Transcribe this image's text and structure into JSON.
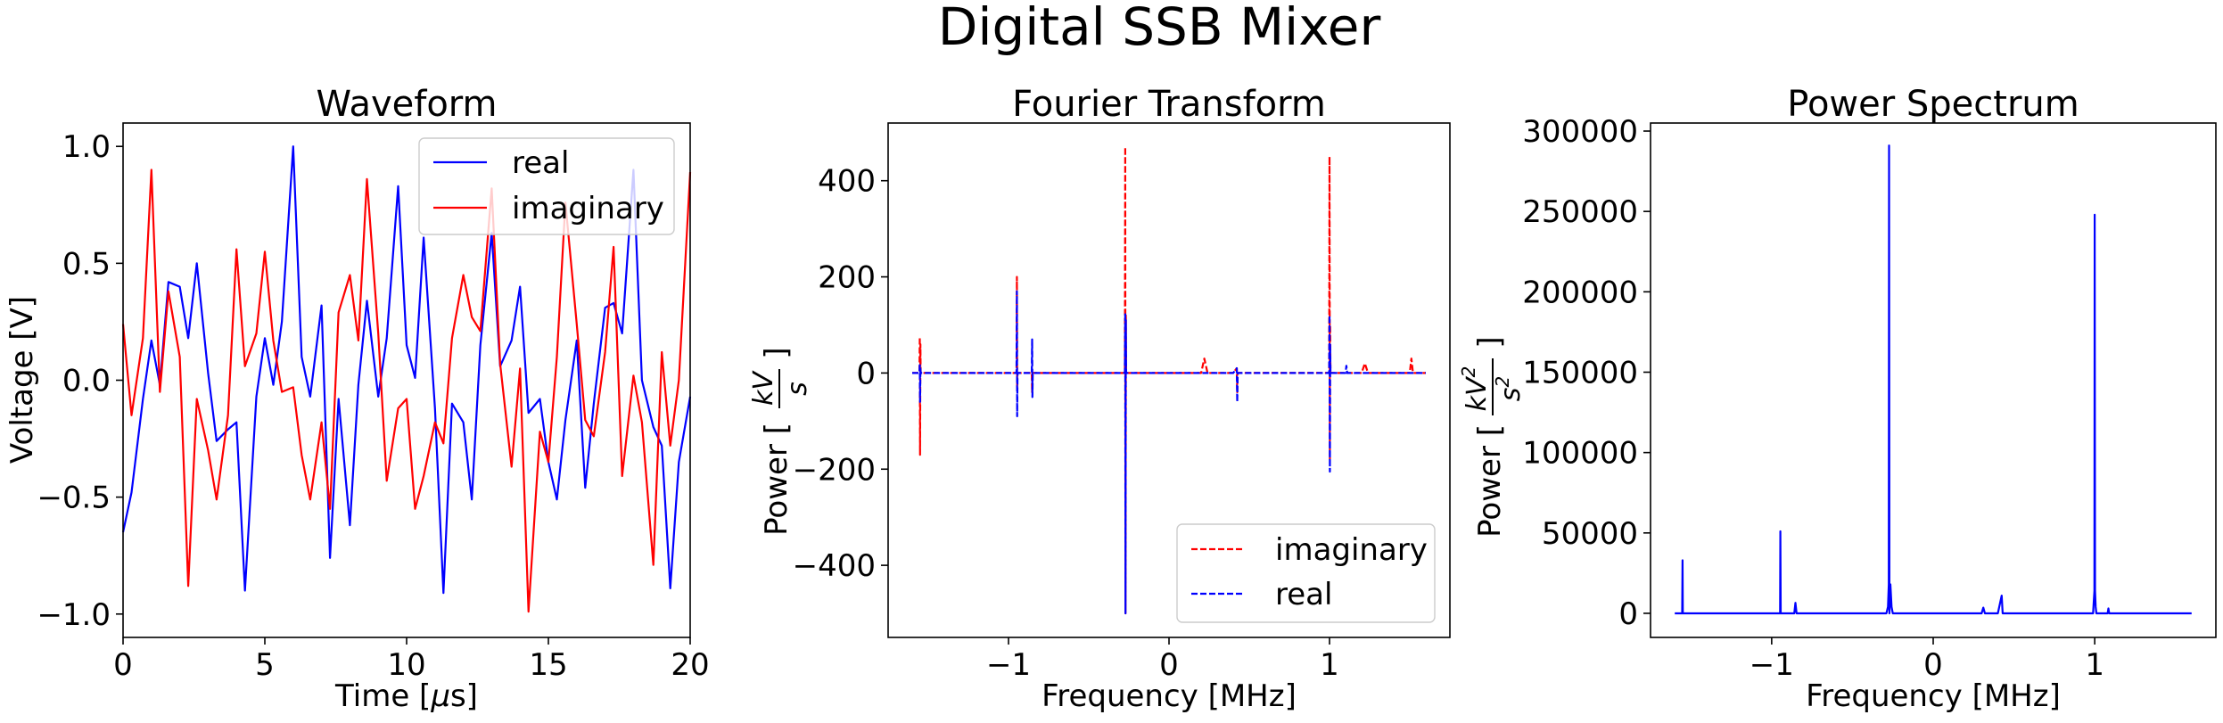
{
  "suptitle": "Digital SSB Mixer",
  "chart_data": [
    {
      "type": "line",
      "title": "Waveform",
      "xlabel": "Time [μs]",
      "ylabel": "Voltage [V]",
      "xlim": [
        0,
        20
      ],
      "ylim": [
        -1.1,
        1.1
      ],
      "xticks": [
        0,
        5,
        10,
        15,
        20
      ],
      "xtick_labels": [
        "0",
        "5",
        "10",
        "15",
        "20"
      ],
      "yticks": [
        -1.0,
        -0.5,
        0.0,
        0.5,
        1.0
      ],
      "ytick_labels": [
        "−1.0",
        "−0.5",
        "0.0",
        "0.5",
        "1.0"
      ],
      "legend": "top-right",
      "grid": false,
      "series": [
        {
          "name": "real",
          "color": "#0000ff",
          "style": "solid",
          "x": [
            0,
            0.3,
            0.7,
            1.0,
            1.3,
            1.6,
            2.0,
            2.3,
            2.6,
            3.0,
            3.3,
            3.7,
            4.0,
            4.3,
            4.7,
            5.0,
            5.3,
            5.6,
            6.0,
            6.3,
            6.6,
            7.0,
            7.3,
            7.6,
            8.0,
            8.3,
            8.6,
            9.0,
            9.3,
            9.7,
            10.0,
            10.3,
            10.6,
            11.0,
            11.3,
            11.6,
            12.0,
            12.3,
            12.6,
            13.0,
            13.3,
            13.7,
            14.0,
            14.3,
            14.7,
            15.0,
            15.3,
            15.6,
            16.0,
            16.3,
            16.6,
            17.0,
            17.3,
            17.6,
            18.0,
            18.3,
            18.7,
            19.0,
            19.3,
            19.6,
            20.0
          ],
          "y": [
            -0.65,
            -0.48,
            -0.08,
            0.17,
            -0.02,
            0.42,
            0.4,
            0.18,
            0.5,
            0.03,
            -0.26,
            -0.21,
            -0.18,
            -0.9,
            -0.07,
            0.18,
            -0.02,
            0.25,
            1.0,
            0.1,
            -0.07,
            0.32,
            -0.76,
            -0.08,
            -0.62,
            -0.02,
            0.34,
            -0.07,
            0.18,
            0.83,
            0.15,
            0.01,
            0.61,
            -0.12,
            -0.91,
            -0.1,
            -0.18,
            -0.51,
            0.15,
            0.63,
            0.06,
            0.17,
            0.4,
            -0.14,
            -0.08,
            -0.35,
            -0.51,
            -0.17,
            0.17,
            -0.46,
            -0.1,
            0.31,
            0.33,
            0.2,
            0.9,
            0.0,
            -0.2,
            -0.28,
            -0.89,
            -0.35,
            -0.07
          ]
        },
        {
          "name": "imaginary",
          "color": "#ff0000",
          "style": "solid",
          "x": [
            0,
            0.3,
            0.7,
            1.0,
            1.3,
            1.6,
            2.0,
            2.3,
            2.6,
            3.0,
            3.3,
            3.7,
            4.0,
            4.3,
            4.7,
            5.0,
            5.3,
            5.6,
            6.0,
            6.3,
            6.6,
            7.0,
            7.3,
            7.6,
            8.0,
            8.3,
            8.6,
            9.0,
            9.3,
            9.7,
            10.0,
            10.3,
            10.6,
            11.0,
            11.3,
            11.6,
            12.0,
            12.3,
            12.6,
            13.0,
            13.3,
            13.7,
            14.0,
            14.3,
            14.7,
            15.0,
            15.3,
            15.6,
            16.0,
            16.3,
            16.6,
            17.0,
            17.3,
            17.6,
            18.0,
            18.3,
            18.7,
            19.0,
            19.3,
            19.6,
            20.0
          ],
          "y": [
            0.24,
            -0.15,
            0.18,
            0.9,
            -0.05,
            0.38,
            0.1,
            -0.88,
            -0.08,
            -0.3,
            -0.51,
            -0.15,
            0.56,
            0.06,
            0.2,
            0.55,
            0.17,
            -0.05,
            -0.03,
            -0.32,
            -0.51,
            -0.18,
            -0.55,
            0.29,
            0.45,
            0.17,
            0.86,
            0.2,
            -0.43,
            -0.12,
            -0.08,
            -0.55,
            -0.41,
            -0.18,
            -0.27,
            0.18,
            0.45,
            0.27,
            0.21,
            0.82,
            0.07,
            -0.37,
            0.05,
            -0.99,
            -0.22,
            -0.35,
            0.1,
            0.76,
            0.24,
            -0.17,
            -0.24,
            0.12,
            0.57,
            -0.41,
            0.02,
            -0.18,
            -0.79,
            0.12,
            -0.28,
            0.0,
            0.89
          ]
        }
      ]
    },
    {
      "type": "line",
      "title": "Fourier Transform",
      "xlabel": "Frequency [MHz]",
      "ylabel": "Power [kV/s]",
      "xlim": [
        -1.75,
        1.75
      ],
      "ylim": [
        -550,
        520
      ],
      "xticks": [
        -1,
        0,
        1
      ],
      "xtick_labels": [
        "−1",
        "0",
        "1"
      ],
      "yticks": [
        -400,
        -200,
        0,
        200,
        400
      ],
      "ytick_labels": [
        "−400",
        "−200",
        "0",
        "200",
        "400"
      ],
      "legend": "bottom-right",
      "grid": false,
      "series": [
        {
          "name": "imaginary",
          "color": "#ff0000",
          "style": "dashed",
          "x": [
            -1.6,
            -1.555,
            -1.553,
            -1.551,
            -1.549,
            -1.547,
            -1.545,
            -1.5,
            -1.2,
            -0.95,
            -0.948,
            -0.946,
            -0.944,
            -0.9,
            -0.855,
            -0.853,
            -0.851,
            -0.6,
            -0.45,
            -0.4,
            -0.275,
            -0.273,
            -0.271,
            -0.269,
            -0.267,
            -0.265,
            -0.2,
            0.0,
            0.2,
            0.22,
            0.24,
            0.4,
            0.4225,
            0.425,
            0.4275,
            0.6,
            0.8,
            0.998,
            1.0,
            1.002,
            1.004,
            1.006,
            1.1,
            1.2,
            1.22,
            1.24,
            1.5,
            1.51,
            1.52,
            1.6
          ],
          "y": [
            0,
            0,
            75,
            -170,
            60,
            0,
            0,
            0,
            0,
            0,
            200,
            -30,
            0,
            0,
            0,
            -40,
            0,
            0,
            0,
            0,
            0,
            470,
            -500,
            120,
            0,
            0,
            0,
            0,
            0,
            30,
            0,
            0,
            10,
            -40,
            0,
            0,
            0,
            0,
            450,
            -180,
            100,
            0,
            0,
            0,
            20,
            0,
            0,
            30,
            0,
            0
          ]
        },
        {
          "name": "real",
          "color": "#0000ff",
          "style": "dashed",
          "x": [
            -1.6,
            -1.555,
            -1.553,
            -1.551,
            -1.549,
            -1.547,
            -1.545,
            -1.5,
            -1.2,
            -0.95,
            -0.948,
            -0.946,
            -0.944,
            -0.9,
            -0.855,
            -0.853,
            -0.851,
            -0.849,
            -0.6,
            -0.4,
            -0.275,
            -0.273,
            -0.271,
            -0.269,
            -0.267,
            -0.265,
            -0.2,
            0.0,
            0.2,
            0.4,
            0.4225,
            0.425,
            0.4275,
            0.6,
            0.8,
            0.998,
            1.0,
            1.002,
            1.004,
            1.006,
            1.05,
            1.1,
            1.105,
            1.11,
            1.6
          ],
          "y": [
            0,
            0,
            20,
            -60,
            10,
            0,
            0,
            0,
            0,
            0,
            170,
            -90,
            0,
            0,
            0,
            70,
            -50,
            0,
            0,
            0,
            0,
            125,
            -500,
            110,
            0,
            0,
            0,
            0,
            0,
            0,
            10,
            -60,
            0,
            0,
            0,
            0,
            120,
            -205,
            60,
            0,
            0,
            0,
            15,
            0,
            0
          ]
        }
      ]
    },
    {
      "type": "line",
      "title": "Power Spectrum",
      "xlabel": "Frequency [MHz]",
      "ylabel": "Power [kV²/s²]",
      "xlim": [
        -1.75,
        1.75
      ],
      "ylim": [
        -15000,
        305000
      ],
      "xticks": [
        -1,
        0,
        1
      ],
      "xtick_labels": [
        "−1",
        "0",
        "1"
      ],
      "yticks": [
        0,
        50000,
        100000,
        150000,
        200000,
        250000,
        300000
      ],
      "ytick_labels": [
        "0",
        "50000",
        "100000",
        "150000",
        "200000",
        "250000",
        "300000"
      ],
      "legend": "",
      "grid": false,
      "series": [
        {
          "name": "",
          "color": "#0000ff",
          "style": "solid",
          "x": [
            -1.6,
            -1.554,
            -1.552,
            -1.55,
            -1.2,
            -0.948,
            -0.946,
            -0.944,
            -0.86,
            -0.853,
            -0.846,
            -0.6,
            -0.29,
            -0.28,
            -0.275,
            -0.273,
            -0.271,
            -0.265,
            -0.258,
            -0.25,
            -0.2,
            0.0,
            0.2,
            0.3,
            0.31,
            0.32,
            0.4,
            0.424,
            0.43,
            0.7,
            0.9,
            0.99,
            0.998,
            1.0,
            1.002,
            1.006,
            1.01,
            1.08,
            1.085,
            1.09,
            1.6
          ],
          "y": [
            0,
            0,
            33000,
            0,
            0,
            0,
            51000,
            0,
            0,
            6500,
            0,
            0,
            0,
            4000,
            18000,
            291000,
            0,
            18000,
            4000,
            0,
            0,
            0,
            0,
            0,
            3500,
            0,
            0,
            11000,
            0,
            0,
            0,
            0,
            14000,
            248000,
            14000,
            4000,
            0,
            0,
            3000,
            0,
            0
          ]
        }
      ]
    }
  ]
}
